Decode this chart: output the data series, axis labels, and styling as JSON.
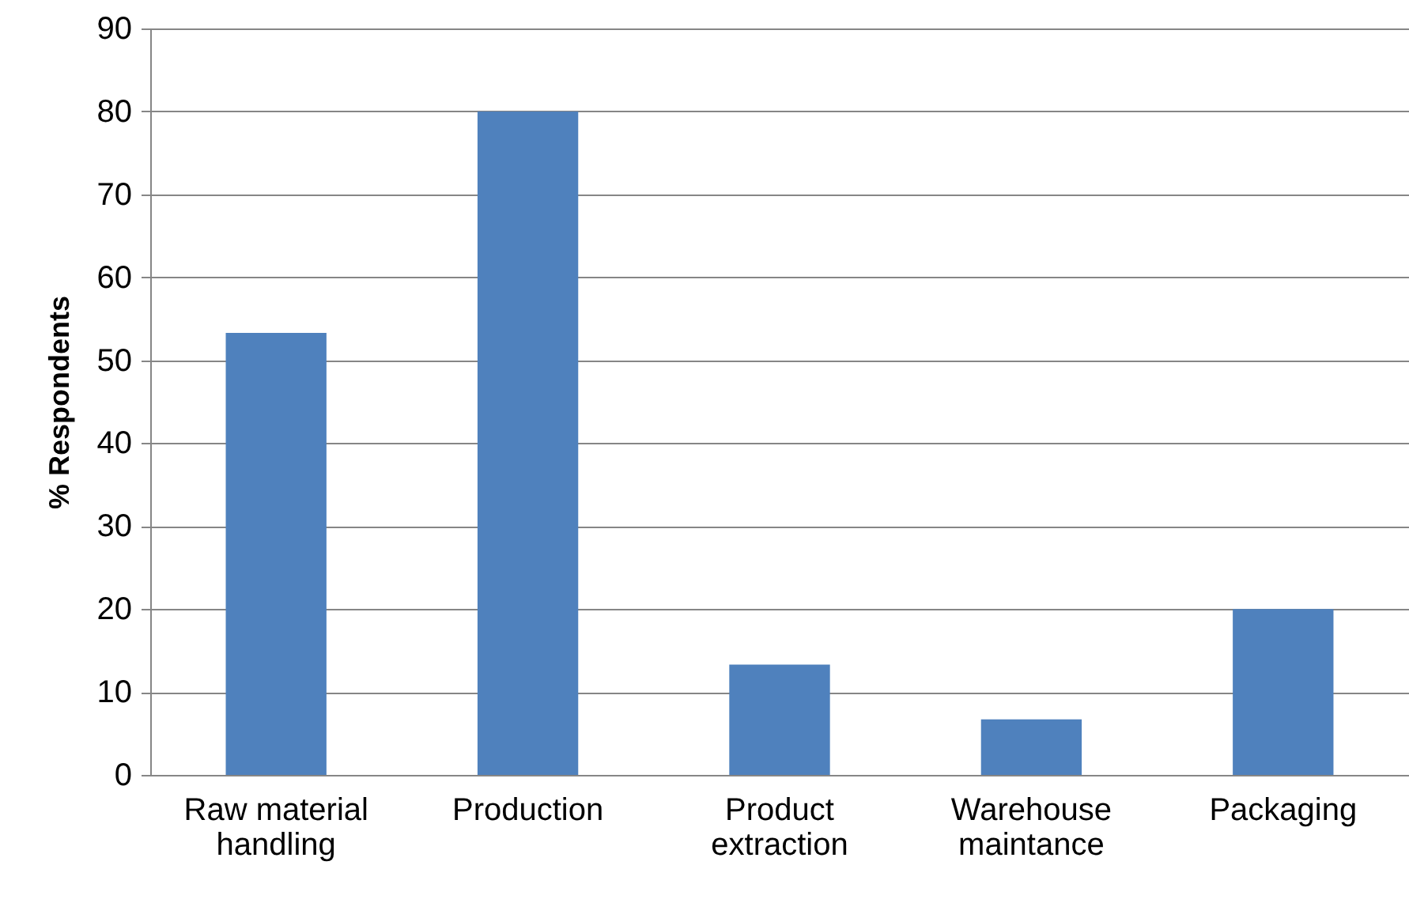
{
  "chart_data": {
    "type": "bar",
    "ylabel": "% Respondents",
    "categories": [
      "Raw material handling",
      "Production",
      "Product extraction",
      "Warehouse maintance",
      "Packaging"
    ],
    "values": [
      53.3,
      80,
      13.3,
      6.7,
      20
    ],
    "color": "#4f81bd",
    "ylim": [
      0,
      90
    ],
    "yticks": [
      0,
      10,
      20,
      30,
      40,
      50,
      60,
      70,
      80,
      90
    ],
    "grid": "y"
  }
}
